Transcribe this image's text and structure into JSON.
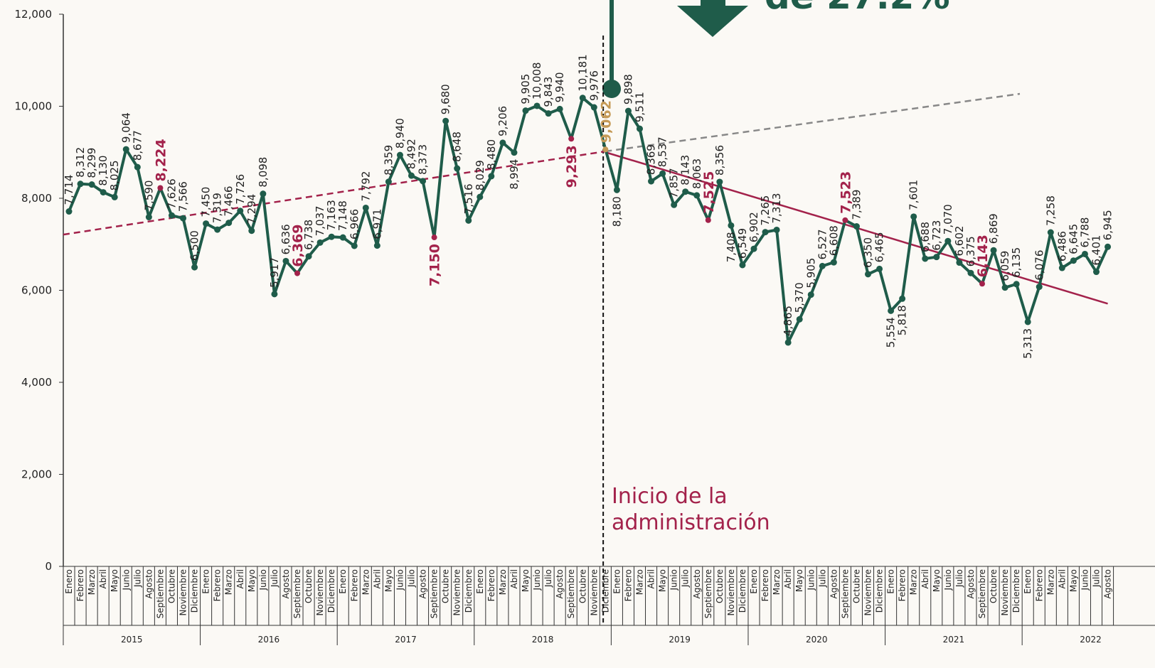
{
  "chart_data": {
    "type": "line",
    "annotation_top": "de 27.2%",
    "annotation": [
      "Inicio de la",
      "administración"
    ],
    "color": "#1f5c4a",
    "highlight_color": "#a3224b",
    "categories": [
      "Enero",
      "Febrero",
      "Marzo",
      "Abril",
      "Mayo",
      "Junio",
      "Julio",
      "Agosto",
      "Septiembre",
      "Octubre",
      "Noviembre",
      "Diciembre",
      "Enero",
      "Febrero",
      "Marzo",
      "Abril",
      "Mayo",
      "Junio",
      "Julio",
      "Agosto",
      "Septiembre",
      "Octubre",
      "Noviembre",
      "Diciembre",
      "Enero",
      "Febrero",
      "Marzo",
      "Abril",
      "Mayo",
      "Junio",
      "Julio",
      "Agosto",
      "Septiembre",
      "Octubre",
      "Noviembre",
      "Diciembre",
      "Enero",
      "Febrero",
      "Marzo",
      "Abril",
      "Mayo",
      "Junio",
      "Julio",
      "Agosto",
      "Septiembre",
      "Octubre",
      "Noviembre",
      "Diciembre",
      "Enero",
      "Febrero",
      "Marzo",
      "Abril",
      "Mayo",
      "Junio",
      "Julio",
      "Agosto",
      "Septiembre",
      "Octubre",
      "Noviembre",
      "Diciembre",
      "Enero",
      "Febrero",
      "Marzo",
      "Abril",
      "Mayo",
      "Junio",
      "Julio",
      "Agosto",
      "Septiembre",
      "Octubre",
      "Noviembre",
      "Diciembre",
      "Enero",
      "Febrero",
      "Marzo",
      "Abril",
      "Mayo",
      "Junio",
      "Julio",
      "Agosto",
      "Septiembre",
      "Octubre",
      "Noviembre",
      "Diciembre",
      "Enero",
      "Febrero",
      "Marzo",
      "Abril",
      "Mayo",
      "Junio",
      "Julio",
      "Agosto"
    ],
    "years": [
      "2015",
      "2016",
      "2017",
      "2018",
      "2019",
      "2020",
      "2021",
      "2022"
    ],
    "values": [
      7714,
      8312,
      8299,
      8130,
      8025,
      9064,
      8677,
      7590,
      8224,
      7626,
      7566,
      6500,
      7450,
      7319,
      7466,
      7726,
      7294,
      8098,
      5917,
      6636,
      6369,
      6738,
      7037,
      7163,
      7148,
      6966,
      7792,
      6971,
      8359,
      8940,
      8492,
      8373,
      7150,
      9680,
      8648,
      7516,
      8029,
      8480,
      9206,
      8994,
      9905,
      10008,
      9843,
      9940,
      9293,
      10181,
      9976,
      9062,
      8180,
      9898,
      9511,
      8369,
      8537,
      7857,
      8143,
      8063,
      7525,
      8356,
      7408,
      6549,
      6902,
      7265,
      7313,
      4865,
      5370,
      5905,
      6527,
      6608,
      7523,
      7389,
      6350,
      6465,
      5554,
      5818,
      7601,
      6688,
      6723,
      7070,
      6602,
      6375,
      6143,
      6869,
      6059,
      6135,
      5313,
      6076,
      7258,
      6486,
      6645,
      6788,
      6401,
      6945
    ],
    "value_labels": [
      "7,714",
      "8,312",
      "8,299",
      "8,130",
      "8,025",
      "9,064",
      "8,677",
      "7,590",
      "8,224",
      "7,626",
      "7,566",
      "6,500",
      "7,450",
      "7,319",
      "7,466",
      "7,726",
      "7,294",
      "8,098",
      "5,917",
      "6,636",
      "6,369",
      "6,738",
      "7,037",
      "7,163",
      "7,148",
      "6,966",
      "7,792",
      "6,971",
      "8,359",
      "8,940",
      "8,492",
      "8,373",
      "7,150",
      "9,680",
      "8,648",
      "7,516",
      "8,029",
      "8,480",
      "9,206",
      "8,994",
      "9,905",
      "10,008",
      "9,843",
      "9,940",
      "9,293",
      "10,181",
      "9,976",
      "9,062",
      "8,180",
      "9,898",
      "9,511",
      "8,369",
      "8,537",
      "7,857",
      "8,143",
      "8,063",
      "7,525",
      "8,356",
      "7,408",
      "6,549",
      "6,902",
      "7,265",
      "7,313",
      "4,865",
      "5,370",
      "5,905",
      "6,527",
      "6,608",
      "7,523",
      "7,389",
      "6,350",
      "6,465",
      "5,554",
      "5,818",
      "7,601",
      "6,688",
      "6,723",
      "7,070",
      "6,602",
      "6,375",
      "6,143",
      "6,869",
      "6,059",
      "6,135",
      "5,313",
      "6,076",
      "7,258",
      "6,486",
      "6,645",
      "6,788",
      "6,401",
      "6,945"
    ],
    "highlights": [
      {
        "index": 8,
        "color": "#a3224b"
      },
      {
        "index": 20,
        "color": "#a3224b"
      },
      {
        "index": 32,
        "color": "#a3224b"
      },
      {
        "index": 44,
        "color": "#a3224b"
      },
      {
        "index": 56,
        "color": "#a3224b"
      },
      {
        "index": 68,
        "color": "#a3224b"
      },
      {
        "index": 80,
        "color": "#a3224b"
      },
      {
        "index": 47,
        "color": "#c59a57"
      }
    ],
    "label_below": [
      32,
      39,
      44,
      48,
      58,
      72,
      73,
      84
    ],
    "trend_lines": [
      {
        "color": "#a3224b",
        "dashed": true,
        "x": [
          -0.5,
          47
        ],
        "values": [
          7210,
          9020
        ]
      },
      {
        "color": "#a3224b",
        "dashed": false,
        "x": [
          47,
          91
        ],
        "values": [
          9000,
          5710
        ]
      },
      {
        "color": "#888888",
        "dashed": true,
        "x": [
          47,
          83.3
        ],
        "values": [
          9020,
          10270
        ]
      }
    ],
    "ylim": [
      0,
      12000
    ],
    "yticks": [
      {
        "value": 0,
        "label": "0"
      },
      {
        "value": 2000,
        "label": "2,000"
      },
      {
        "value": 4000,
        "label": "4,000"
      },
      {
        "value": 6000,
        "label": "6,000"
      },
      {
        "value": 8000,
        "label": "8,000"
      },
      {
        "value": 10000,
        "label": "10,000"
      },
      {
        "value": 12000,
        "label": "12,000"
      }
    ]
  }
}
